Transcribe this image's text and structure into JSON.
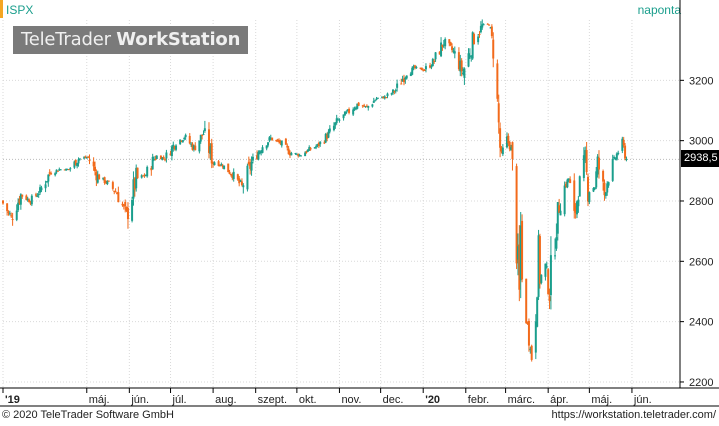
{
  "header": {
    "symbol": "ISPX",
    "period": "naponta"
  },
  "logo": {
    "part1": "TeleTrader ",
    "part2": "WorkStation"
  },
  "last_value": "2938,5",
  "footer": {
    "copyright": "© 2020 TeleTrader Software GmbH",
    "url": "https://workstation.teletrader.com/"
  },
  "colors": {
    "up": "#1a9e8c",
    "down": "#f26a1b",
    "grid": "#d9d9d9",
    "axis": "#000000",
    "accent": "#f5a623"
  },
  "chart_data": {
    "type": "candlestick",
    "title": "",
    "xlabel": "",
    "ylabel": "",
    "ylim": [
      2180,
      3400
    ],
    "y_ticks": [
      2200,
      2400,
      2600,
      2800,
      3000,
      3200
    ],
    "y_tick_labels": [
      "2200",
      "2400",
      "2600",
      "2800",
      "3000",
      "3200"
    ],
    "x_ticks": [
      {
        "date": "2019-03-01",
        "label": "'19",
        "bold": true
      },
      {
        "date": "2019-05-01",
        "label": "máj.",
        "bold": false
      },
      {
        "date": "2019-06-01",
        "label": "jún.",
        "bold": false
      },
      {
        "date": "2019-07-01",
        "label": "júl.",
        "bold": false
      },
      {
        "date": "2019-08-01",
        "label": "aug.",
        "bold": false
      },
      {
        "date": "2019-09-01",
        "label": "szept.",
        "bold": false
      },
      {
        "date": "2019-10-01",
        "label": "okt.",
        "bold": false
      },
      {
        "date": "2019-11-01",
        "label": "nov.",
        "bold": false
      },
      {
        "date": "2019-12-01",
        "label": "dec.",
        "bold": false
      },
      {
        "date": "2020-01-01",
        "label": "'20",
        "bold": true
      },
      {
        "date": "2020-02-01",
        "label": "febr.",
        "bold": false
      },
      {
        "date": "2020-03-01",
        "label": "márc.",
        "bold": false
      },
      {
        "date": "2020-04-01",
        "label": "ápr.",
        "bold": false
      },
      {
        "date": "2020-05-01",
        "label": "máj.",
        "bold": false
      },
      {
        "date": "2020-06-01",
        "label": "jún.",
        "bold": false
      }
    ],
    "x_range": [
      "2019-03-01",
      "2020-07-06"
    ],
    "series": [
      {
        "points": [
          [
            "2019-03-01",
            2800
          ],
          [
            "2019-03-08",
            2745
          ],
          [
            "2019-03-15",
            2820
          ],
          [
            "2019-03-22",
            2800
          ],
          [
            "2019-03-29",
            2834
          ],
          [
            "2019-04-05",
            2892
          ],
          [
            "2019-04-12",
            2905
          ],
          [
            "2019-04-19",
            2905
          ],
          [
            "2019-04-26",
            2940
          ],
          [
            "2019-05-03",
            2945
          ],
          [
            "2019-05-10",
            2880
          ],
          [
            "2019-05-17",
            2860
          ],
          [
            "2019-05-24",
            2826
          ],
          [
            "2019-05-31",
            2752
          ],
          [
            "2019-06-07",
            2873
          ],
          [
            "2019-06-14",
            2886
          ],
          [
            "2019-06-21",
            2950
          ],
          [
            "2019-06-28",
            2941
          ],
          [
            "2019-07-05",
            2990
          ],
          [
            "2019-07-12",
            3013
          ],
          [
            "2019-07-19",
            2976
          ],
          [
            "2019-07-26",
            3025
          ],
          [
            "2019-08-02",
            2932
          ],
          [
            "2019-08-09",
            2918
          ],
          [
            "2019-08-16",
            2888
          ],
          [
            "2019-08-23",
            2847
          ],
          [
            "2019-08-30",
            2926
          ],
          [
            "2019-09-06",
            2978
          ],
          [
            "2019-09-13",
            3007
          ],
          [
            "2019-09-20",
            2992
          ],
          [
            "2019-09-27",
            2961
          ],
          [
            "2019-10-04",
            2952
          ],
          [
            "2019-10-11",
            2970
          ],
          [
            "2019-10-18",
            2986
          ],
          [
            "2019-10-25",
            3022
          ],
          [
            "2019-11-01",
            3066
          ],
          [
            "2019-11-08",
            3093
          ],
          [
            "2019-11-15",
            3120
          ],
          [
            "2019-11-22",
            3110
          ],
          [
            "2019-11-29",
            3140
          ],
          [
            "2019-12-06",
            3145
          ],
          [
            "2019-12-13",
            3168
          ],
          [
            "2019-12-20",
            3221
          ],
          [
            "2019-12-27",
            3240
          ],
          [
            "2020-01-03",
            3235
          ],
          [
            "2020-01-10",
            3265
          ],
          [
            "2020-01-17",
            3329
          ],
          [
            "2020-01-24",
            3295
          ],
          [
            "2020-01-31",
            3225
          ],
          [
            "2020-02-07",
            3327
          ],
          [
            "2020-02-14",
            3380
          ],
          [
            "2020-02-19",
            3386
          ],
          [
            "2020-02-21",
            3337
          ],
          [
            "2020-02-24",
            3225
          ],
          [
            "2020-02-25",
            3128
          ],
          [
            "2020-02-27",
            2978
          ],
          [
            "2020-02-28",
            2954
          ],
          [
            "2020-03-03",
            3003
          ],
          [
            "2020-03-06",
            2972
          ],
          [
            "2020-03-09",
            2746
          ],
          [
            "2020-03-12",
            2480
          ],
          [
            "2020-03-13",
            2711
          ],
          [
            "2020-03-16",
            2386
          ],
          [
            "2020-03-18",
            2398
          ],
          [
            "2020-03-20",
            2304
          ],
          [
            "2020-03-23",
            2237
          ],
          [
            "2020-03-24",
            2447
          ],
          [
            "2020-03-26",
            2630
          ],
          [
            "2020-03-27",
            2541
          ],
          [
            "2020-03-31",
            2585
          ],
          [
            "2020-04-03",
            2488
          ],
          [
            "2020-04-08",
            2750
          ],
          [
            "2020-04-14",
            2846
          ],
          [
            "2020-04-17",
            2875
          ],
          [
            "2020-04-21",
            2737
          ],
          [
            "2020-04-24",
            2837
          ],
          [
            "2020-04-29",
            2939
          ],
          [
            "2020-05-01",
            2830
          ],
          [
            "2020-05-06",
            2848
          ],
          [
            "2020-05-08",
            2930
          ],
          [
            "2020-05-13",
            2820
          ],
          [
            "2020-05-15",
            2863
          ],
          [
            "2020-05-19",
            2922
          ],
          [
            "2020-05-22",
            2955
          ],
          [
            "2020-05-26",
            2992
          ],
          [
            "2020-05-29",
            2938
          ]
        ]
      }
    ]
  }
}
